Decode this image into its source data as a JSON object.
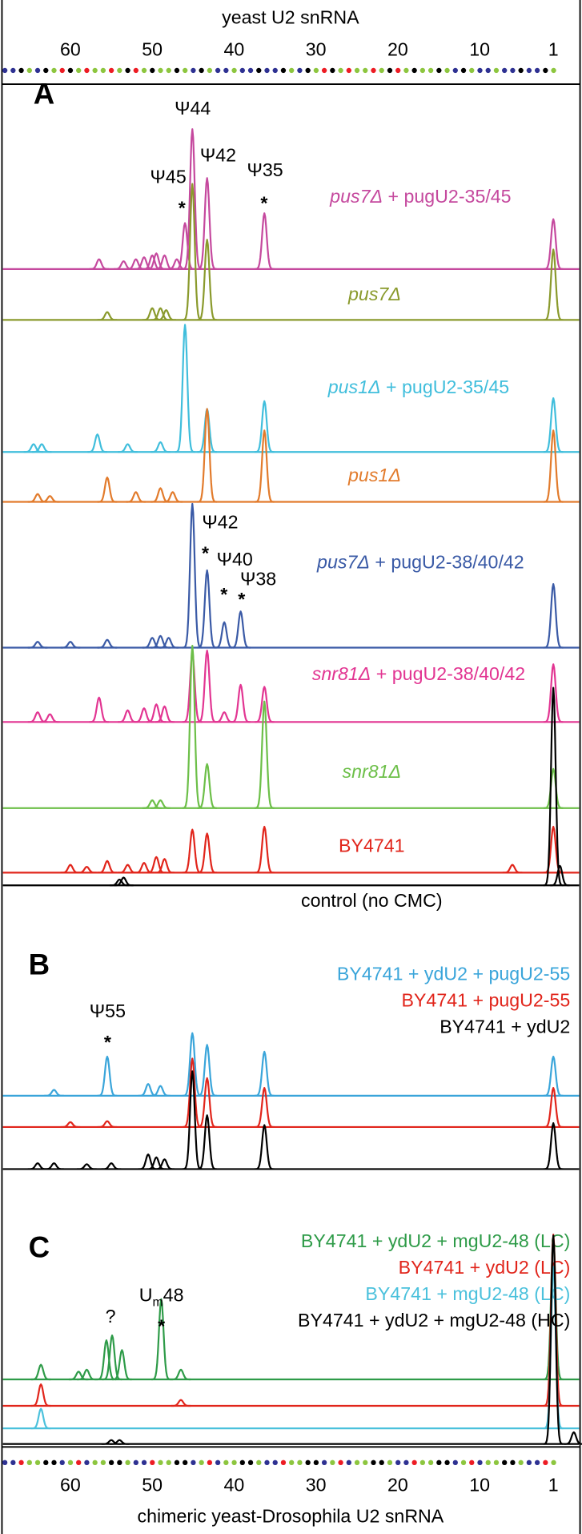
{
  "chart_data": {
    "type": "trace",
    "title": "yeast U2 snRNA",
    "xlabel": "chimeric yeast-Drosophila U2 snRNA",
    "xlim": [
      68.6,
      -2.5
    ],
    "xticks": [
      60,
      50,
      40,
      30,
      20,
      10,
      1
    ],
    "panels": [
      {
        "letter": "A",
        "series": [
          {
            "name_parts": [
              "pus7Δ",
              " + pugU2-35/45"
            ],
            "italic_first": true,
            "color": "#c5499e",
            "x": [
              56.5,
              53.5,
              52,
              51,
              50,
              49.5,
              48.5,
              47,
              46,
              45.1,
              43.3,
              36.3,
              1
            ],
            "values": [
              10,
              8,
              10,
              12,
              14,
              16,
              14,
              10,
              47,
              143,
              93,
              57,
              51
            ]
          },
          {
            "name_parts": [
              "pus7Δ"
            ],
            "italic_first": true,
            "color": "#8a9a2c",
            "x": [
              55.5,
              50,
              49,
              48.3,
              45.1,
              43.3,
              1
            ],
            "values": [
              8,
              12,
              12,
              10,
              139,
              82,
              72
            ]
          },
          {
            "name_parts": [
              "pus1Δ",
              " + pugU2-35/45"
            ],
            "italic_first": true,
            "color": "#40bedc",
            "x": [
              64.5,
              63.5,
              56.7,
              53,
              49,
              46,
              43.3,
              36.3,
              1
            ],
            "values": [
              8,
              8,
              18,
              8,
              10,
              130,
              44,
              52,
              55
            ]
          },
          {
            "name_parts": [
              "pus1Δ"
            ],
            "italic_first": true,
            "color": "#e27b2c",
            "x": [
              64,
              62.5,
              55.5,
              52,
              49,
              47.5,
              43.3,
              36.3,
              1
            ],
            "values": [
              8,
              6,
              25,
              10,
              14,
              10,
              95,
              73,
              73
            ]
          },
          {
            "name_parts": [
              "pus7Δ",
              " + pugU2-38/40/42"
            ],
            "italic_first": true,
            "color": "#3a5aa6",
            "x": [
              64,
              60,
              55.5,
              50,
              49,
              48,
              45.1,
              43.3,
              41.2,
              39.2,
              1
            ],
            "values": [
              6,
              6,
              8,
              10,
              12,
              10,
              147,
              79,
              26,
              37,
              65
            ]
          },
          {
            "name_parts": [
              "snr81Δ",
              " + pugU2-38/40/42"
            ],
            "italic_first": true,
            "color": "#e23592",
            "x": [
              64,
              62.5,
              56.5,
              53,
              51,
              49.5,
              48.5,
              45.1,
              43.3,
              41.2,
              39.2,
              36.3,
              1
            ],
            "values": [
              10,
              8,
              25,
              12,
              14,
              18,
              16,
              70,
              73,
              10,
              38,
              36,
              59
            ]
          },
          {
            "name_parts": [
              "snr81Δ"
            ],
            "italic_first": true,
            "color": "#6cbf48",
            "x": [
              50,
              49,
              45.1,
              43.3,
              36.3,
              1
            ],
            "values": [
              8,
              8,
              166,
              45,
              109,
              40
            ]
          },
          {
            "name_parts": [
              "BY4741"
            ],
            "italic_first": false,
            "color": "#e1251b",
            "x": [
              60,
              58,
              55.5,
              53,
              51,
              49.5,
              48.5,
              45.1,
              43.3,
              36.3,
              6,
              1
            ],
            "values": [
              8,
              6,
              12,
              8,
              10,
              16,
              14,
              44,
              40,
              47,
              8,
              47
            ]
          },
          {
            "name_parts": [
              "control (no CMC)"
            ],
            "italic_first": false,
            "color": "#000000",
            "x": [
              54,
              53.5,
              1,
              0.2
            ],
            "values": [
              6,
              8,
              202,
              20
            ]
          }
        ],
        "annotations": [
          {
            "parts": [
              "Ψ44"
            ]
          },
          {
            "parts": [
              "Ψ45"
            ]
          },
          {
            "parts": [
              "*"
            ]
          },
          {
            "parts": [
              "Ψ42"
            ]
          },
          {
            "parts": [
              "Ψ35"
            ]
          },
          {
            "parts": [
              "*"
            ]
          },
          {
            "parts": [
              "Ψ42"
            ]
          },
          {
            "parts": [
              "*"
            ]
          },
          {
            "parts": [
              "Ψ40"
            ]
          },
          {
            "parts": [
              "*"
            ]
          },
          {
            "parts": [
              "Ψ38"
            ]
          },
          {
            "parts": [
              "*"
            ]
          }
        ]
      },
      {
        "letter": "B",
        "series": [
          {
            "name_parts": [
              "BY4741 + ydU2 + pugU2-55"
            ],
            "italic_first": false,
            "color": "#3aa5da",
            "x": [
              62,
              55.5,
              50.5,
              49,
              45.1,
              43.3,
              36.3,
              1
            ],
            "values": [
              6,
              40,
              12,
              10,
              64,
              52,
              45,
              40
            ]
          },
          {
            "name_parts": [
              "BY4741 + pugU2-55"
            ],
            "italic_first": false,
            "color": "#e1251b",
            "x": [
              60,
              55.5,
              45.1,
              43.3,
              36.3,
              1
            ],
            "values": [
              5,
              6,
              70,
              50,
              40,
              40
            ]
          },
          {
            "name_parts": [
              "BY4741 + ydU2"
            ],
            "italic_first": false,
            "color": "#000000",
            "x": [
              64,
              62,
              58,
              55,
              50.5,
              49.5,
              48.5,
              45.1,
              43.3,
              36.3,
              1
            ],
            "values": [
              6,
              6,
              5,
              6,
              15,
              12,
              10,
              100,
              55,
              45,
              47
            ]
          }
        ],
        "annotations": [
          {
            "parts": [
              "Ψ55"
            ]
          },
          {
            "parts": [
              "*"
            ]
          }
        ]
      },
      {
        "letter": "C",
        "series": [
          {
            "name_parts": [
              "BY4741 + ydU2 + mgU2-48 (LC)"
            ],
            "italic_first": false,
            "color": "#2e9b48",
            "x": [
              63.6,
              59,
              58,
              55.6,
              54.9,
              53.7,
              48.9,
              46.5,
              1
            ],
            "values": [
              15,
              8,
              10,
              40,
              45,
              30,
              82,
              10,
              145
            ]
          },
          {
            "name_parts": [
              "BY4741 + ydU2 (LC)"
            ],
            "italic_first": false,
            "color": "#e1251b",
            "x": [
              63.6,
              46.5,
              1
            ],
            "values": [
              22,
              6,
              175
            ]
          },
          {
            "name_parts": [
              "BY4741 + mgU2-48 (LC)"
            ],
            "italic_first": false,
            "color": "#4bc1dc",
            "x": [
              63.6,
              1
            ],
            "values": [
              20,
              165
            ]
          },
          {
            "name_parts": [
              "BY4741 + ydU2 + mgU2-48 (HC)"
            ],
            "italic_first": false,
            "color": "#000000",
            "x": [
              55,
              54,
              1,
              -1.5
            ],
            "values": [
              4,
              4,
              213,
              12
            ]
          }
        ],
        "annotations": [
          {
            "parts": [
              "?"
            ]
          },
          {
            "parts": [
              "U",
              "m",
              "48"
            ],
            "subscript_part": 1
          },
          {
            "parts": [
              "*"
            ]
          }
        ]
      }
    ]
  }
}
